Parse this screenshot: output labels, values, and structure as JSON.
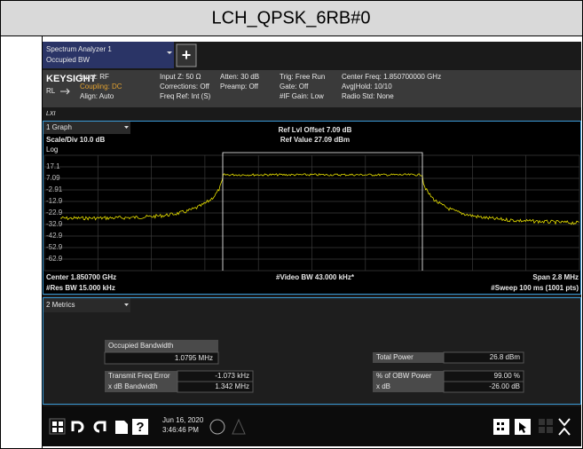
{
  "header": {
    "title": "LCH_QPSK_6RB#0"
  },
  "tab": {
    "name": "Spectrum Analyzer 1",
    "mode": "Occupied BW",
    "add": "+"
  },
  "status": {
    "brand": "KEYSIGHT",
    "rl": "RL",
    "lxi": "LXI",
    "col1": [
      "Input: RF",
      "Coupling: DC",
      "Align: Auto"
    ],
    "col2": [
      "Input Z: 50 Ω",
      "Corrections: Off",
      "Freq Ref: Int (S)"
    ],
    "col3": [
      "Atten: 30 dB",
      "Preamp: Off"
    ],
    "col4": [
      "Trig: Free Run",
      "Gate: Off",
      "#IF Gain: Low"
    ],
    "col5": [
      "Center Freq: 1.850700000 GHz",
      "Avg|Hold: 10/10",
      "Radio Std: None"
    ]
  },
  "graph": {
    "panel": "1 Graph",
    "scale": "Scale/Div 10.0 dB",
    "log": "Log",
    "ref_offset": "Ref Lvl Offset 7.09 dB",
    "ref_value": "Ref Value 27.09 dBm",
    "y_labels": [
      "17.1",
      "7.09",
      "-2.91",
      "-12.9",
      "-22.9",
      "-32.9",
      "-42.9",
      "-52.9",
      "-62.9"
    ],
    "center": "Center 1.850700 GHz",
    "res_bw": "#Res BW 15.000 kHz",
    "video_bw": "#Video BW 43.000 kHz*",
    "span": "Span 2.8 MHz",
    "sweep": "#Sweep 100 ms (1001 pts)"
  },
  "metrics": {
    "panel": "2 Metrics",
    "obw_label": "Occupied Bandwidth",
    "obw_value": "1.0795 MHz",
    "left": [
      [
        "Transmit Freq Error",
        "-1.073 kHz"
      ],
      [
        "x dB Bandwidth",
        "1.342 MHz"
      ]
    ],
    "total_power": [
      "Total Power",
      "26.8 dBm"
    ],
    "right": [
      [
        "% of OBW Power",
        "99.00 %"
      ],
      [
        "x dB",
        "-26.00 dB"
      ]
    ]
  },
  "taskbar": {
    "date": "Jun 16, 2020",
    "time": "3:46:46 PM",
    "help": "?"
  }
}
